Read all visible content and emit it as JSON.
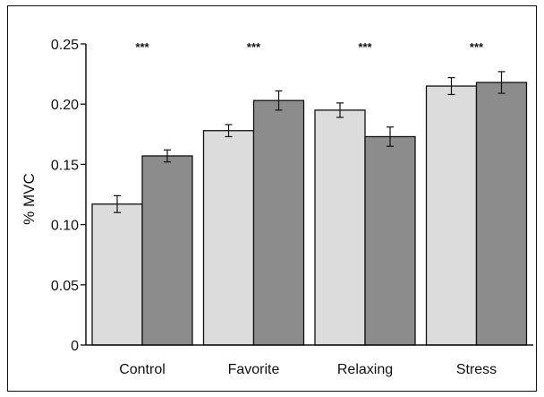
{
  "chart_data": {
    "type": "bar",
    "title": "",
    "xlabel": "",
    "ylabel": "% MVC",
    "ylim": [
      0,
      0.25
    ],
    "yticks": [
      "0",
      "0.05",
      "0.10",
      "0.15",
      "0.20",
      "0.25"
    ],
    "categories": [
      "Control",
      "Favorite",
      "Relaxing",
      "Stress"
    ],
    "series": [
      {
        "values": [
          0.117,
          0.178,
          0.195,
          0.215
        ],
        "errors": [
          0.007,
          0.005,
          0.006,
          0.007
        ],
        "color": "#dcdcdc"
      },
      {
        "values": [
          0.157,
          0.203,
          0.173,
          0.218
        ],
        "errors": [
          0.005,
          0.008,
          0.008,
          0.009
        ],
        "color": "#8c8c8c"
      }
    ],
    "annotations": [
      "***",
      "***",
      "***",
      "***"
    ],
    "grid": false,
    "legend": "none"
  }
}
